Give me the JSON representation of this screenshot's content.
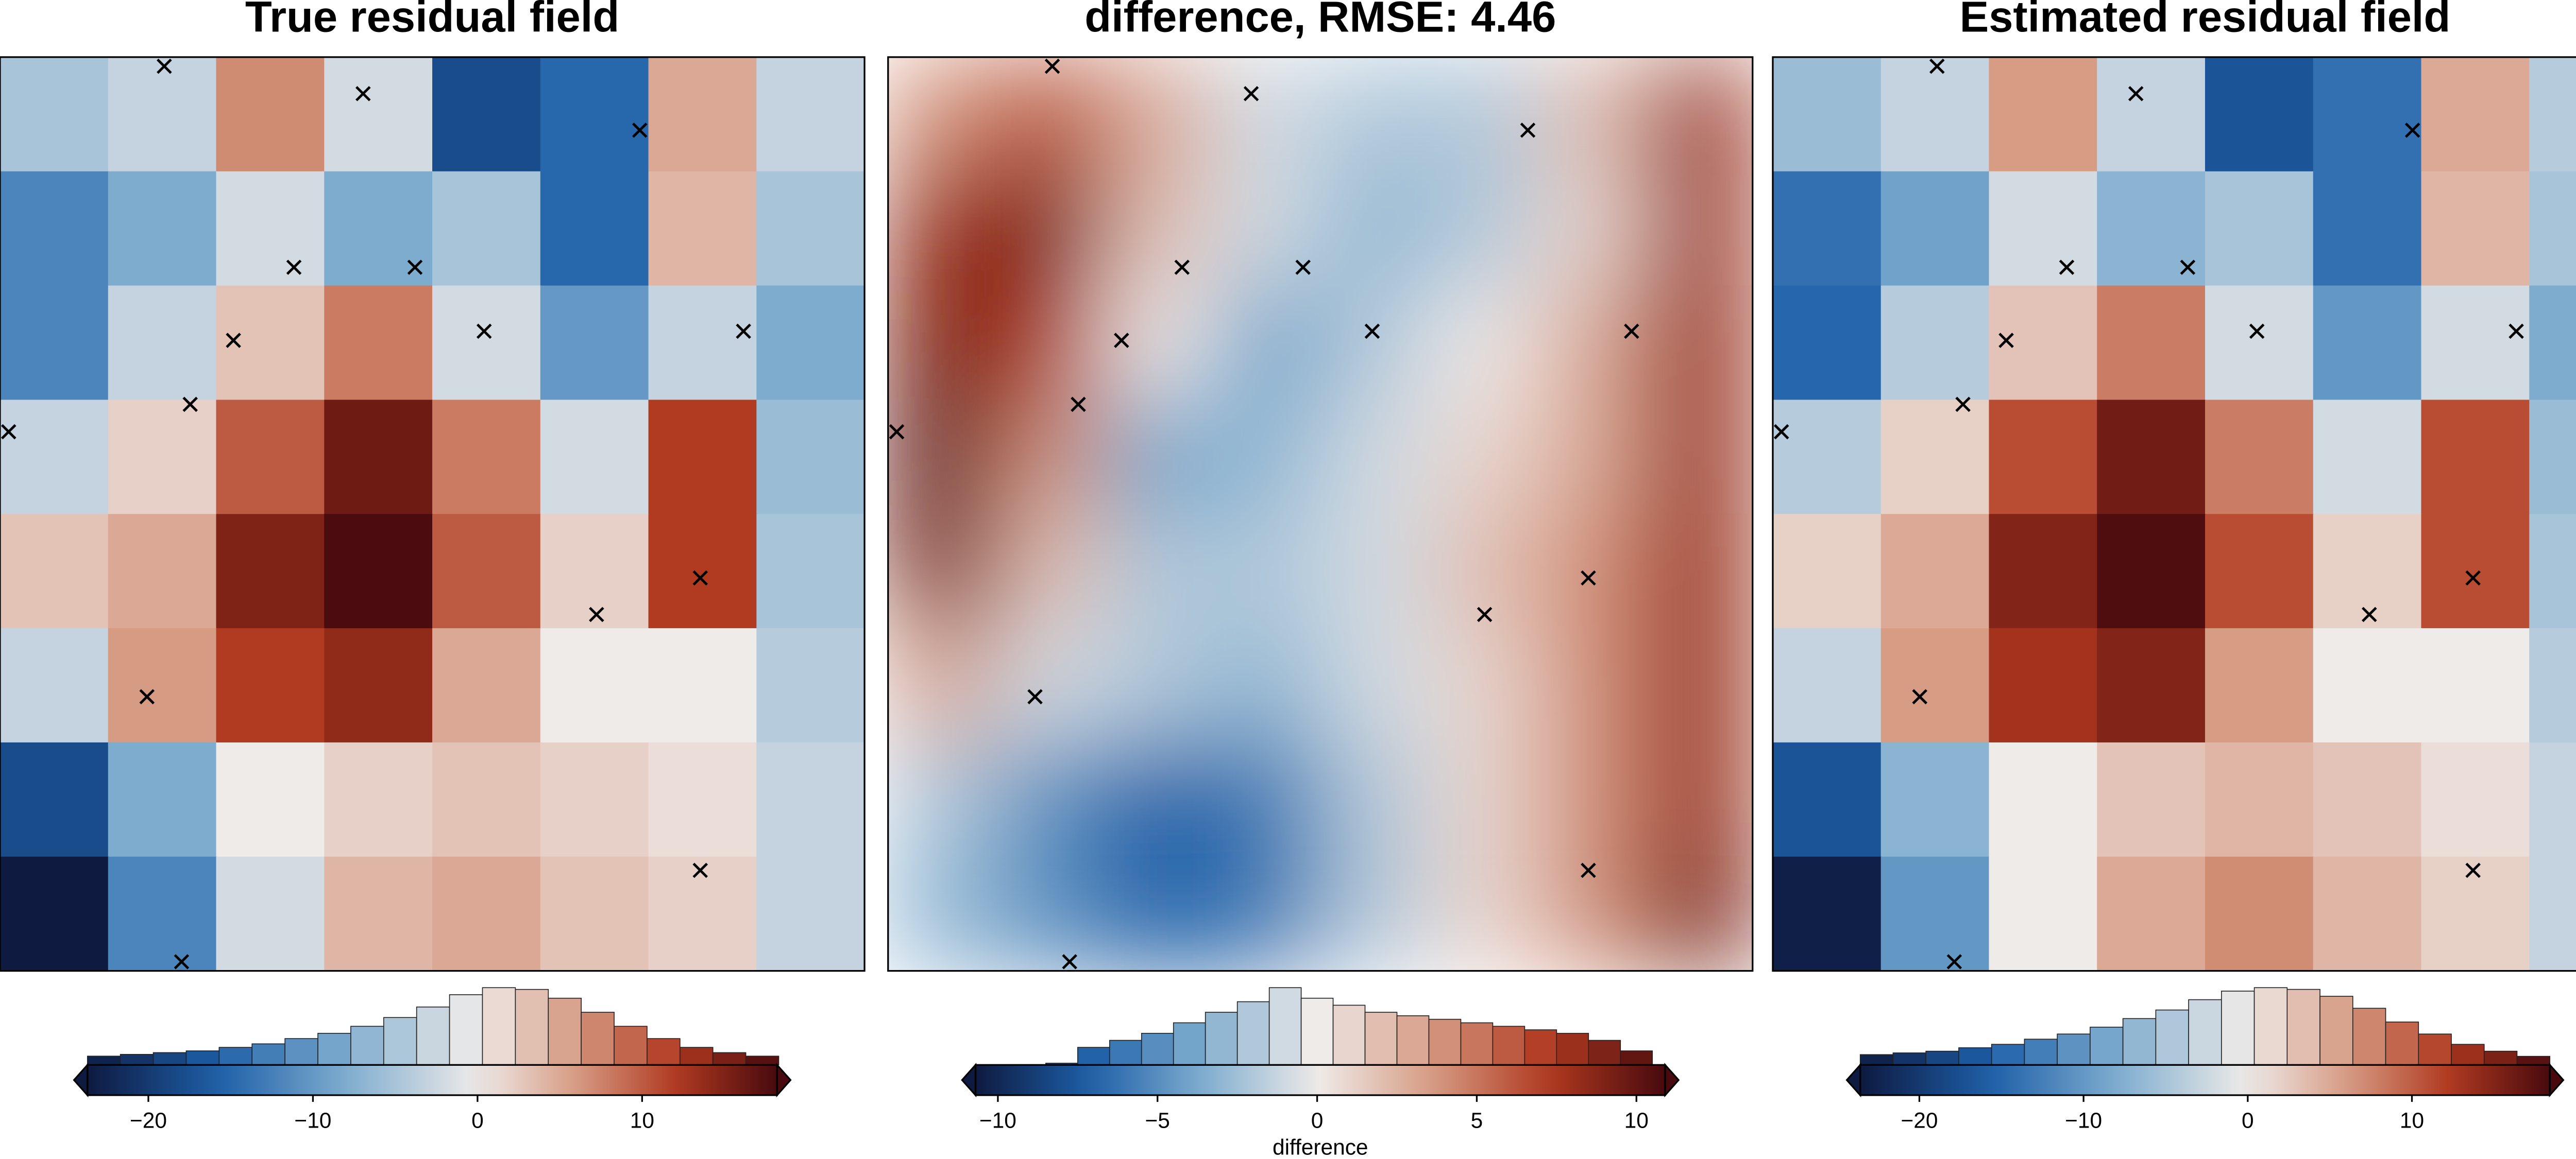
{
  "colormap": [
    "#0e1a40",
    "#1d5fa8",
    "#7fadcf",
    "#efebe9",
    "#d69a82",
    "#b0391f",
    "#480a0e"
  ],
  "samples": {
    "x": [
      19,
      42,
      74,
      34,
      48,
      56,
      27,
      86,
      22,
      1,
      81,
      69,
      17,
      81,
      21
    ],
    "y": [
      99,
      96,
      92,
      77,
      77,
      70,
      69,
      70,
      62,
      59,
      43,
      39,
      30,
      11,
      1
    ]
  },
  "chart_data": [
    {
      "type": "heatmap",
      "title": "True residual field",
      "xlim": [
        0,
        100
      ],
      "ylim": [
        0,
        100
      ],
      "z": [
        [
          -5,
          -3,
          7,
          -2,
          -18,
          -15,
          5,
          -3
        ],
        [
          -12,
          -8,
          -2,
          -8,
          -5,
          -15,
          4,
          -5
        ],
        [
          -12,
          -3,
          3,
          8,
          -2,
          -10,
          -3,
          -8
        ],
        [
          -3,
          2,
          10,
          16,
          8,
          -2,
          12,
          -6
        ],
        [
          3,
          5,
          15,
          18,
          10,
          2,
          12,
          -5
        ],
        [
          -3,
          6,
          12,
          14,
          5,
          0,
          0,
          -4
        ],
        [
          -18,
          -8,
          0,
          2,
          3,
          2,
          1,
          -3
        ],
        [
          -24,
          -12,
          -2,
          4,
          5,
          3,
          2,
          -3
        ]
      ],
      "clim": [
        -23.7,
        18.2
      ],
      "colorbar": {
        "ticks": [
          {
            "value": -20,
            "label": "−20"
          },
          {
            "value": -10,
            "label": "−10"
          },
          0,
          10
        ],
        "bins": [
          -23.7,
          -21.7,
          -19.7,
          -17.7,
          -15.7,
          -13.7,
          -11.7,
          -9.7,
          -7.7,
          -5.7,
          -3.7,
          -1.7,
          0.3,
          2.3,
          4.3,
          6.3,
          8.3,
          10.3,
          12.3,
          14.3,
          16.3,
          18.3
        ],
        "counts": [
          5,
          6,
          7,
          8,
          10,
          12,
          15,
          18,
          22,
          27,
          33,
          40,
          44,
          43,
          38,
          30,
          22,
          15,
          10,
          7,
          5
        ]
      }
    },
    {
      "type": "heatmap",
      "title": "difference, RMSE: 4.46",
      "xlim": [
        0,
        100
      ],
      "ylim": [
        0,
        100
      ],
      "smooth": true,
      "z": [
        [
          4,
          6,
          3,
          -1,
          -2,
          -2,
          2,
          8
        ],
        [
          8,
          9,
          2,
          -1,
          -3,
          -2,
          1,
          8
        ],
        [
          9,
          7,
          0,
          -4,
          -2,
          0,
          3,
          8
        ],
        [
          10,
          4,
          -4,
          -3,
          -1,
          1,
          3,
          8
        ],
        [
          9,
          2,
          -2,
          -2,
          -1,
          2,
          4,
          8
        ],
        [
          3,
          -1,
          -2,
          -3,
          -1,
          1,
          4,
          8
        ],
        [
          -2,
          -5,
          -7,
          -6,
          -2,
          1,
          4,
          8
        ],
        [
          -3,
          -5,
          -7,
          -6,
          -2,
          1,
          4,
          9
        ]
      ],
      "clim": [
        -10.7,
        10.9
      ],
      "colorbar": {
        "label": "difference",
        "ticks": [
          {
            "value": -10,
            "label": "−10"
          },
          {
            "value": -5,
            "label": "−5"
          },
          0,
          5,
          10
        ],
        "bins": [
          -10.5,
          -9.5,
          -8.5,
          -7.5,
          -6.5,
          -5.5,
          -4.5,
          -3.5,
          -2.5,
          -1.5,
          -0.5,
          0.5,
          1.5,
          2.5,
          3.5,
          4.5,
          5.5,
          6.5,
          7.5,
          8.5,
          9.5,
          10.5
        ],
        "counts": [
          0,
          0,
          1,
          10,
          14,
          18,
          24,
          30,
          36,
          44,
          38,
          34,
          30,
          28,
          26,
          24,
          22,
          20,
          18,
          14,
          8
        ]
      }
    },
    {
      "type": "heatmap",
      "title": "Estimated residual field",
      "xlim": [
        0,
        100
      ],
      "ylim": [
        0,
        100
      ],
      "z": [
        [
          -6,
          -3,
          6,
          -3,
          -17,
          -14,
          5,
          -4
        ],
        [
          -14,
          -9,
          -2,
          -7,
          -5,
          -14,
          4,
          -5
        ],
        [
          -15,
          -4,
          3,
          8,
          -2,
          -10,
          -2,
          -8
        ],
        [
          -4,
          2,
          11,
          16,
          8,
          -2,
          11,
          -6
        ],
        [
          2,
          5,
          15,
          18,
          11,
          2,
          11,
          -5
        ],
        [
          -3,
          6,
          13,
          15,
          6,
          0,
          0,
          -4
        ],
        [
          -17,
          -7,
          0,
          3,
          4,
          3,
          1,
          -3
        ],
        [
          -23,
          -10,
          0,
          5,
          7,
          4,
          2,
          -3
        ]
      ],
      "clim": [
        -23.6,
        18.4
      ],
      "colorbar": {
        "ticks": [
          {
            "value": -20,
            "label": "−20"
          },
          {
            "value": -10,
            "label": "−10"
          },
          0,
          10
        ],
        "bins": [
          -23.6,
          -21.6,
          -19.6,
          -17.6,
          -15.6,
          -13.6,
          -11.6,
          -9.6,
          -7.6,
          -5.6,
          -3.6,
          -1.6,
          0.4,
          2.4,
          4.4,
          6.4,
          8.4,
          10.4,
          12.4,
          14.4,
          16.4,
          18.4
        ],
        "counts": [
          6,
          7,
          8,
          10,
          12,
          15,
          18,
          22,
          27,
          32,
          38,
          43,
          45,
          44,
          40,
          33,
          25,
          18,
          12,
          8,
          5
        ]
      }
    }
  ]
}
